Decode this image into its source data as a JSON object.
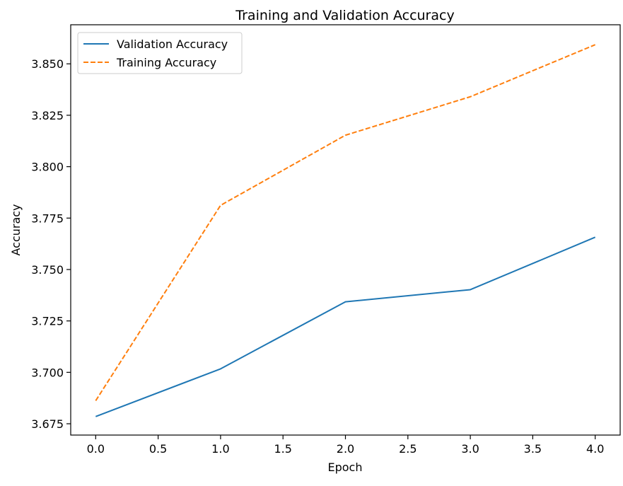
{
  "chart_data": {
    "type": "line",
    "title": "Training and Validation Accuracy",
    "xlabel": "Epoch",
    "ylabel": "Accuracy",
    "xlim": [
      -0.2,
      4.2
    ],
    "ylim": [
      3.6695,
      3.869
    ],
    "x_ticks": [
      0.0,
      0.5,
      1.0,
      1.5,
      2.0,
      2.5,
      3.0,
      3.5,
      4.0
    ],
    "x_tick_labels": [
      "0.0",
      "0.5",
      "1.0",
      "1.5",
      "2.0",
      "2.5",
      "3.0",
      "3.5",
      "4.0"
    ],
    "y_ticks": [
      3.675,
      3.7,
      3.725,
      3.75,
      3.775,
      3.8,
      3.825,
      3.85
    ],
    "y_tick_labels": [
      "3.675",
      "3.700",
      "3.725",
      "3.750",
      "3.775",
      "3.800",
      "3.825",
      "3.850"
    ],
    "grid": false,
    "legend_position": "top-left",
    "x": [
      0,
      1,
      2,
      3,
      4
    ],
    "series": [
      {
        "name": "Validation Accuracy",
        "values": [
          3.6785,
          3.7017,
          3.7343,
          3.7402,
          3.7657
        ],
        "color": "#1f77b4",
        "line_style": "solid"
      },
      {
        "name": "Training Accuracy",
        "values": [
          3.6862,
          3.7812,
          3.8153,
          3.834,
          3.8593
        ],
        "color": "#ff7f0e",
        "line_style": "dashed"
      }
    ]
  }
}
